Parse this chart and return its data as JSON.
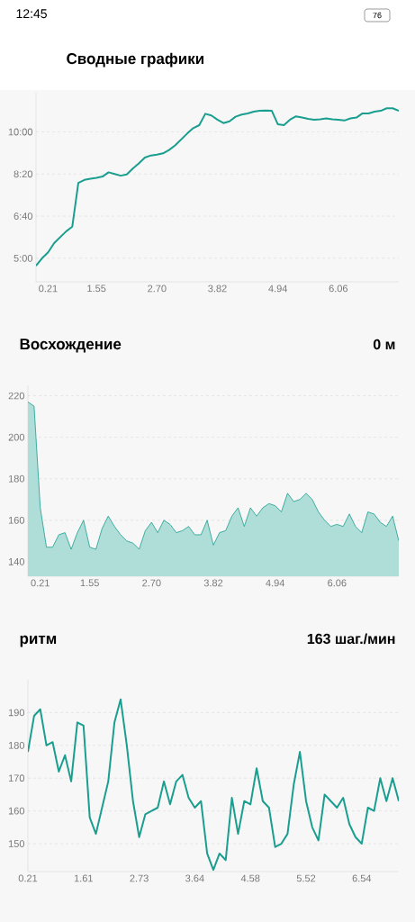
{
  "chart_data": [
    {
      "type": "line",
      "title": "Сводные графики",
      "annotations": [
        "12:45",
        "76"
      ],
      "categories": [
        null,
        null,
        "0.21",
        null,
        null,
        null,
        null,
        null,
        null,
        null,
        "1.55",
        null,
        null,
        null,
        null,
        null,
        null,
        null,
        null,
        null,
        "2.70",
        null,
        null,
        null,
        null,
        null,
        null,
        null,
        null,
        null,
        "3.82",
        null,
        null,
        null,
        null,
        null,
        null,
        null,
        null,
        null,
        "4.94",
        null,
        null,
        null,
        null,
        null,
        null,
        null,
        null,
        null,
        "6.06",
        null,
        null,
        null,
        null,
        null,
        null,
        null,
        null,
        null,
        null
      ],
      "series": [
        {
          "color": "#1a9e8f",
          "values": [
            282,
            300,
            314,
            336,
            350,
            364,
            375,
            479,
            486,
            489,
            491,
            494,
            504,
            500,
            496,
            499,
            513,
            525,
            539,
            544,
            546,
            549,
            557,
            568,
            582,
            596,
            609,
            616,
            643,
            639,
            629,
            621,
            625,
            636,
            641,
            644,
            648,
            650,
            651,
            650,
            618,
            616,
            629,
            637,
            634,
            631,
            629,
            630,
            632,
            630,
            629,
            627,
            632,
            634,
            644,
            644,
            648,
            650,
            656,
            656,
            650
          ]
        }
      ],
      "ylim": [
        244,
        693
      ],
      "yticks": [
        {
          "value": 300,
          "label": "5:00"
        },
        {
          "value": 400,
          "label": "6:40"
        },
        {
          "value": 500,
          "label": "8:20"
        },
        {
          "value": 600,
          "label": "10:00"
        }
      ],
      "grid": "y"
    },
    {
      "type": "area",
      "title": "Восхождение",
      "subtitle": "0 м",
      "categories": [
        null,
        null,
        "0.21",
        null,
        null,
        null,
        null,
        null,
        null,
        null,
        "1.55",
        null,
        null,
        null,
        null,
        null,
        null,
        null,
        null,
        null,
        "2.70",
        null,
        null,
        null,
        null,
        null,
        null,
        null,
        null,
        null,
        "3.82",
        null,
        null,
        null,
        null,
        null,
        null,
        null,
        null,
        null,
        "4.94",
        null,
        null,
        null,
        null,
        null,
        null,
        null,
        null,
        null,
        "6.06",
        null,
        null,
        null,
        null,
        null,
        null,
        null,
        null,
        null,
        null
      ],
      "series": [
        {
          "color": "#1a9e8f",
          "values": [
            217,
            215,
            166,
            147,
            147,
            153,
            154,
            146,
            154,
            160,
            147,
            146,
            156,
            162,
            157,
            153,
            150,
            149,
            146,
            155,
            159,
            154,
            160,
            158,
            154,
            155,
            157,
            153,
            153,
            160,
            148,
            154,
            155,
            162,
            166,
            157,
            166,
            162,
            166,
            168,
            167,
            164,
            173,
            169,
            170,
            173,
            170,
            164,
            160,
            157,
            158,
            157,
            163,
            157,
            154,
            164,
            163,
            159,
            157,
            162,
            150
          ]
        }
      ],
      "ylim": [
        133,
        225
      ],
      "yticks": [
        140,
        160,
        180,
        200,
        220
      ],
      "grid": "y"
    },
    {
      "type": "line",
      "title": "ритм",
      "subtitle": "163 шаг./мин",
      "categories": [
        "0.21",
        null,
        null,
        null,
        null,
        null,
        null,
        null,
        null,
        "1.61",
        null,
        null,
        null,
        null,
        null,
        null,
        null,
        null,
        "2.73",
        null,
        null,
        null,
        null,
        null,
        null,
        null,
        null,
        "3.64",
        null,
        null,
        null,
        null,
        null,
        null,
        null,
        null,
        "4.58",
        null,
        null,
        null,
        null,
        null,
        null,
        null,
        null,
        "5.52",
        null,
        null,
        null,
        null,
        null,
        null,
        null,
        null,
        "6.54",
        null,
        null,
        null,
        null,
        null,
        null
      ],
      "series": [
        {
          "color": "#1a9e8f",
          "values": [
            178,
            189,
            191,
            180,
            181,
            172,
            177,
            169,
            187,
            186,
            158,
            153,
            161,
            169,
            187,
            194,
            180,
            163,
            152,
            159,
            160,
            161,
            169,
            162,
            169,
            171,
            164,
            161,
            163,
            147,
            142,
            147,
            145,
            164,
            153,
            163,
            162,
            173,
            163,
            161,
            149,
            150,
            153,
            168,
            178,
            163,
            155,
            151,
            165,
            163,
            161,
            164,
            156,
            152,
            150,
            161,
            160,
            170,
            163,
            170,
            163
          ]
        }
      ],
      "ylim": [
        141.5,
        200
      ],
      "yticks": [
        150,
        160,
        170,
        180,
        190
      ],
      "grid": "y"
    }
  ]
}
